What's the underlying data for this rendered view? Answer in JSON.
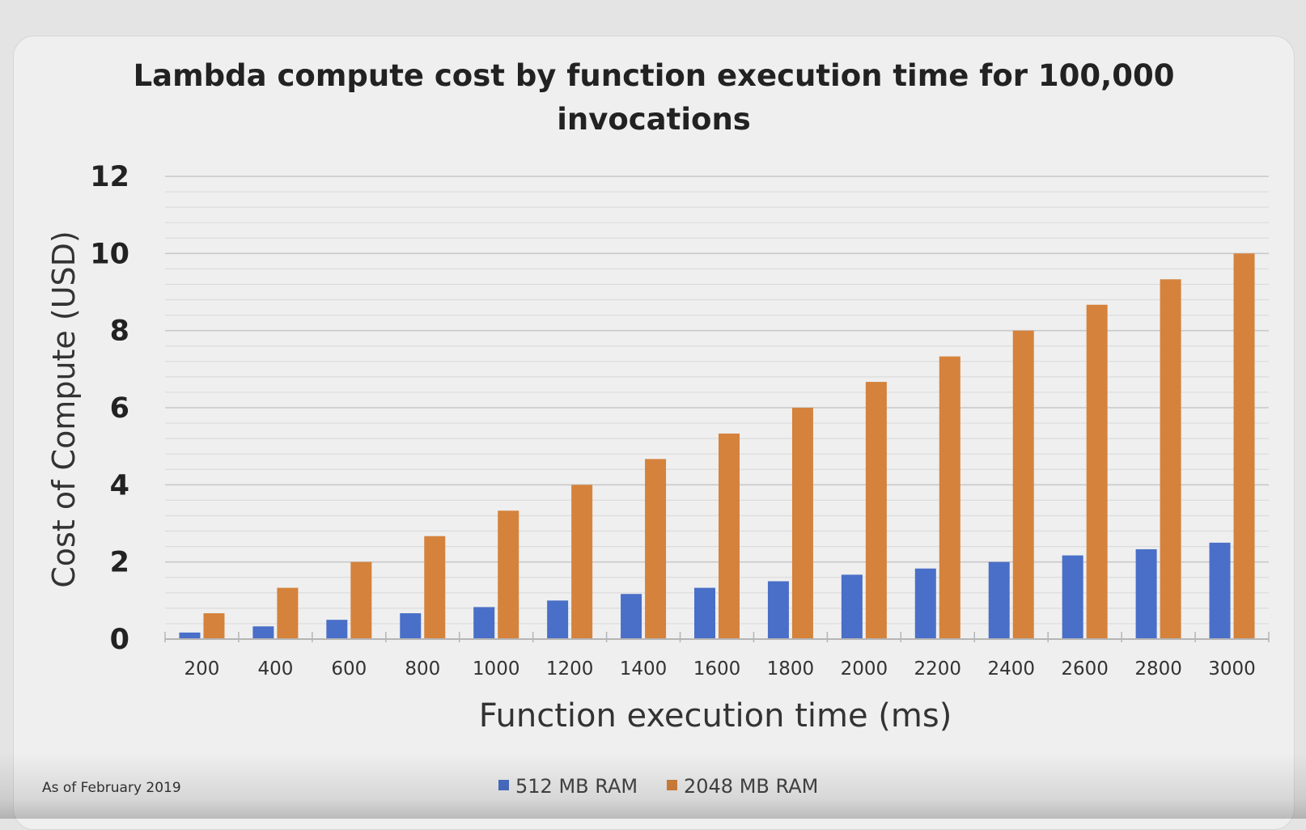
{
  "footnote": "As of February 2019",
  "chart_data": {
    "type": "bar",
    "title": "Lambda compute cost by function execution time for 100,000 invocations",
    "title_lines": [
      "Lambda compute cost by function execution time for 100,000",
      "invocations"
    ],
    "xlabel": "Function execution time (ms)",
    "ylabel": "Cost of Compute (USD)",
    "ylim": [
      0,
      12
    ],
    "yticks": [
      0,
      2,
      4,
      6,
      8,
      10,
      12
    ],
    "grid": true,
    "legend_position": "bottom",
    "categories": [
      "200",
      "400",
      "600",
      "800",
      "1000",
      "1200",
      "1400",
      "1600",
      "1800",
      "2000",
      "2200",
      "2400",
      "2600",
      "2800",
      "3000"
    ],
    "series": [
      {
        "name": "512 MB RAM",
        "color": "#4a6fc8",
        "values": [
          0.17,
          0.33,
          0.5,
          0.67,
          0.83,
          1.0,
          1.17,
          1.33,
          1.5,
          1.67,
          1.83,
          2.0,
          2.17,
          2.33,
          2.5
        ]
      },
      {
        "name": "2048 MB RAM",
        "color": "#d5823c",
        "values": [
          0.67,
          1.33,
          2.0,
          2.67,
          3.33,
          4.0,
          4.67,
          5.33,
          6.0,
          6.67,
          7.33,
          8.0,
          8.67,
          9.33,
          10.0
        ]
      }
    ]
  }
}
